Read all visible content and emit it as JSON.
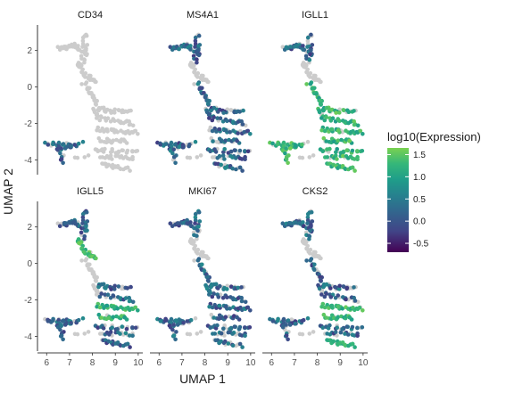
{
  "chart_data": {
    "type": "scatter",
    "layout": "faceted 2x3",
    "panels": [
      {
        "title": "CD34",
        "high_clusters": [],
        "mid_clusters": [
          "bottom_left"
        ]
      },
      {
        "title": "MS4A1",
        "high_clusters": [],
        "mid_clusters": [
          "stalk_top",
          "stalk_mid",
          "right_upper",
          "right_mid",
          "right_lower",
          "right_bottom",
          "bottom_left"
        ]
      },
      {
        "title": "IGLL1",
        "high_clusters": [
          "stalk_mid",
          "right_upper",
          "right_mid",
          "right_lower",
          "right_bottom",
          "bottom_left"
        ],
        "mid_clusters": [
          "stalk_top"
        ]
      },
      {
        "title": "IGLL5",
        "high_clusters": [
          "stalk_bend",
          "right_mid"
        ],
        "mid_clusters": [
          "stalk_top",
          "right_upper",
          "right_lower",
          "right_bottom",
          "bottom_left"
        ]
      },
      {
        "title": "MKI67",
        "high_clusters": [],
        "mid_clusters": [
          "stalk_top",
          "stalk_mid",
          "right_upper",
          "right_mid",
          "right_lower",
          "right_bottom",
          "bottom_left"
        ]
      },
      {
        "title": "CKS2",
        "high_clusters": [
          "right_mid",
          "right_bottom"
        ],
        "mid_clusters": [
          "stalk_top",
          "stalk_mid",
          "right_upper",
          "right_lower",
          "bottom_left"
        ]
      }
    ],
    "xlabel": "UMAP 1",
    "ylabel": "UMAP 2",
    "x_ticks": [
      6,
      7,
      8,
      9,
      10
    ],
    "y_ticks": [
      2,
      0,
      -2,
      -4
    ],
    "xlim": [
      5.6,
      10.2
    ],
    "ylim": [
      -4.8,
      3.4
    ],
    "legend": {
      "title": "log10(Expression)",
      "ticks": [
        1.5,
        1.0,
        0.5,
        0.0,
        -0.5
      ],
      "tick_labels": [
        "1.5",
        "1.0",
        "0.5",
        "0.0",
        "-0.5"
      ],
      "range": [
        -0.7,
        1.65
      ],
      "placement": "right"
    },
    "colors": {
      "no_expression": "#cccccc",
      "scale_low": "#440154",
      "scale_mid": "#21918c",
      "scale_high": "#7ad151"
    }
  }
}
